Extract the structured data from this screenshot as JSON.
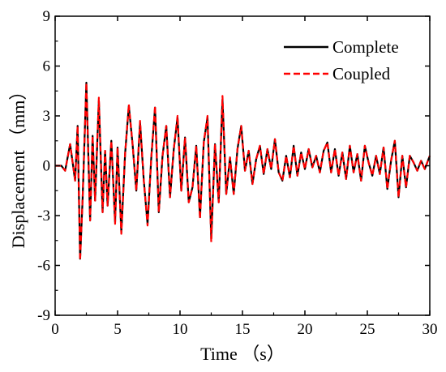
{
  "chart_data": {
    "type": "line",
    "xlabel": "Time （s）",
    "ylabel": "Displacement （mm）",
    "xlim": [
      0,
      30
    ],
    "ylim": [
      -9,
      9
    ],
    "xticks": [
      0,
      5,
      10,
      15,
      20,
      25,
      30
    ],
    "yticks": [
      -9,
      -6,
      -3,
      0,
      3,
      6,
      9
    ],
    "grid": false,
    "legend_position": "top-right",
    "series": [
      {
        "name": "Complete",
        "color": "#000000",
        "style": "solid",
        "x": [
          0,
          0.5,
          0.8,
          1.0,
          1.2,
          1.4,
          1.6,
          1.8,
          2.0,
          2.2,
          2.5,
          2.8,
          3.0,
          3.2,
          3.5,
          3.8,
          4.0,
          4.2,
          4.5,
          4.8,
          5.0,
          5.3,
          5.6,
          5.9,
          6.2,
          6.5,
          6.8,
          7.1,
          7.4,
          7.7,
          8.0,
          8.3,
          8.6,
          8.9,
          9.2,
          9.5,
          9.8,
          10.1,
          10.4,
          10.7,
          11.0,
          11.3,
          11.6,
          11.9,
          12.2,
          12.5,
          12.8,
          13.1,
          13.4,
          13.7,
          14.0,
          14.3,
          14.6,
          14.9,
          15.2,
          15.5,
          15.8,
          16.1,
          16.4,
          16.7,
          17.0,
          17.3,
          17.6,
          17.9,
          18.2,
          18.5,
          18.8,
          19.1,
          19.4,
          19.7,
          20.0,
          20.3,
          20.6,
          20.9,
          21.2,
          21.5,
          21.8,
          22.1,
          22.4,
          22.7,
          23.0,
          23.3,
          23.6,
          23.9,
          24.2,
          24.5,
          24.8,
          25.1,
          25.4,
          25.7,
          26.0,
          26.3,
          26.6,
          26.9,
          27.2,
          27.5,
          27.8,
          28.1,
          28.4,
          28.7,
          29.0,
          29.3,
          29.6,
          30.0
        ],
        "values": [
          0,
          0,
          -0.3,
          0.5,
          1.3,
          0.2,
          -0.9,
          2.4,
          -5.6,
          -2.0,
          5.0,
          -3.3,
          1.8,
          -2.1,
          3.9,
          -2.8,
          0.9,
          -2.4,
          1.5,
          -3.4,
          1.1,
          -4.0,
          0.7,
          3.6,
          1.3,
          -1.5,
          2.6,
          -0.9,
          -3.5,
          0.5,
          3.5,
          -2.8,
          0.6,
          2.4,
          -1.9,
          1.0,
          2.9,
          -1.5,
          1.7,
          -2.2,
          -1.3,
          1.2,
          -3.1,
          1.4,
          2.9,
          -4.4,
          1.3,
          -2.2,
          4.0,
          -1.7,
          0.5,
          -1.7,
          1.0,
          2.4,
          -0.3,
          0.9,
          -1.1,
          0.4,
          1.2,
          -0.5,
          1.0,
          -0.2,
          1.6,
          -0.4,
          -0.9,
          0.6,
          -0.7,
          1.2,
          -0.6,
          0.8,
          -0.2,
          1.0,
          -0.1,
          0.6,
          -0.4,
          0.9,
          1.4,
          -0.4,
          1.0,
          -0.6,
          0.8,
          -0.8,
          1.2,
          -0.4,
          0.7,
          -0.9,
          1.2,
          0.2,
          -0.6,
          0.6,
          -0.5,
          1.1,
          -1.4,
          0.3,
          1.5,
          -1.9,
          0.6,
          -1.3,
          0.6,
          0.2,
          -0.3,
          0.3,
          -0.2,
          0.6
        ]
      },
      {
        "name": "Coupled",
        "color": "#ff0000",
        "style": "dashed",
        "x": [
          0,
          0.5,
          0.8,
          1.0,
          1.2,
          1.4,
          1.6,
          1.8,
          2.0,
          2.2,
          2.5,
          2.8,
          3.0,
          3.2,
          3.5,
          3.8,
          4.0,
          4.2,
          4.5,
          4.8,
          5.0,
          5.3,
          5.6,
          5.9,
          6.2,
          6.5,
          6.8,
          7.1,
          7.4,
          7.7,
          8.0,
          8.3,
          8.6,
          8.9,
          9.2,
          9.5,
          9.8,
          10.1,
          10.4,
          10.7,
          11.0,
          11.3,
          11.6,
          11.9,
          12.2,
          12.5,
          12.8,
          13.1,
          13.4,
          13.7,
          14.0,
          14.3,
          14.6,
          14.9,
          15.2,
          15.5,
          15.8,
          16.1,
          16.4,
          16.7,
          17.0,
          17.3,
          17.6,
          17.9,
          18.2,
          18.5,
          18.8,
          19.1,
          19.4,
          19.7,
          20.0,
          20.3,
          20.6,
          20.9,
          21.2,
          21.5,
          21.8,
          22.1,
          22.4,
          22.7,
          23.0,
          23.3,
          23.6,
          23.9,
          24.2,
          24.5,
          24.8,
          25.1,
          25.4,
          25.7,
          26.0,
          26.3,
          26.6,
          26.9,
          27.2,
          27.5,
          27.8,
          28.1,
          28.4,
          28.7,
          29.0,
          29.3,
          29.6,
          30.0
        ],
        "values": [
          0,
          0,
          -0.3,
          0.5,
          1.3,
          0.2,
          -0.9,
          2.4,
          -5.7,
          -2.0,
          5.0,
          -3.3,
          1.8,
          -2.1,
          4.1,
          -2.8,
          0.9,
          -2.4,
          1.5,
          -3.5,
          1.1,
          -4.1,
          0.7,
          3.7,
          1.3,
          -1.5,
          2.7,
          -0.9,
          -3.6,
          0.5,
          3.6,
          -2.8,
          0.6,
          2.4,
          -1.9,
          1.0,
          3.0,
          -1.5,
          1.7,
          -2.2,
          -1.3,
          1.2,
          -3.2,
          1.4,
          3.0,
          -4.6,
          1.3,
          -2.2,
          4.2,
          -1.7,
          0.5,
          -1.7,
          1.0,
          2.4,
          -0.3,
          0.9,
          -1.1,
          0.4,
          1.2,
          -0.5,
          1.0,
          -0.2,
          1.6,
          -0.4,
          -0.9,
          0.6,
          -0.7,
          1.2,
          -0.6,
          0.8,
          -0.2,
          1.0,
          -0.1,
          0.6,
          -0.4,
          0.9,
          1.4,
          -0.4,
          1.0,
          -0.6,
          0.8,
          -0.8,
          1.2,
          -0.4,
          0.7,
          -0.9,
          1.2,
          0.2,
          -0.6,
          0.6,
          -0.5,
          1.1,
          -1.4,
          0.3,
          1.5,
          -1.9,
          0.6,
          -1.3,
          0.6,
          0.2,
          -0.3,
          0.3,
          -0.2,
          0.6
        ]
      }
    ]
  }
}
